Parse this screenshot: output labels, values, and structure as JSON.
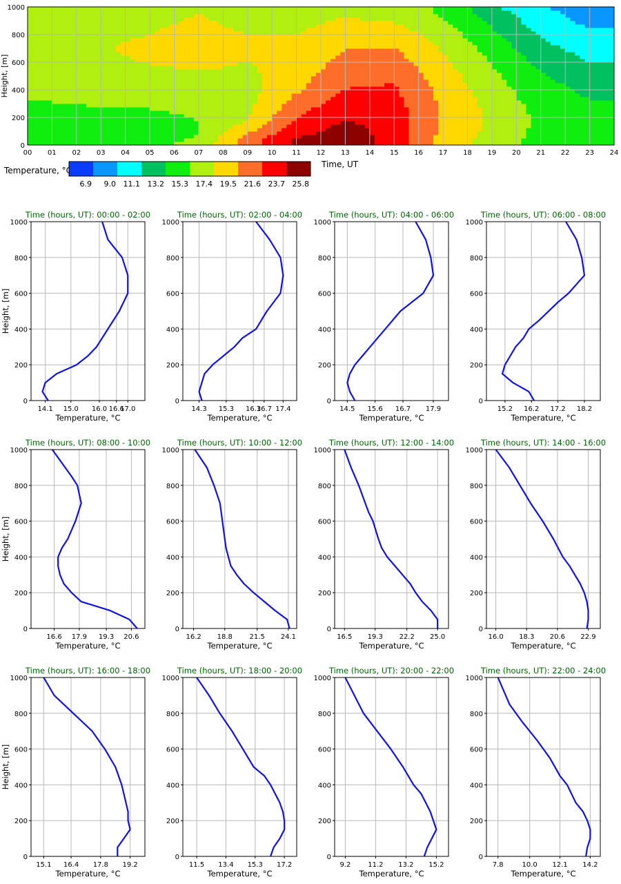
{
  "colors": {
    "grid": "#b8b8b8",
    "profile_line": "#1010e8",
    "subplot_title": "#006400",
    "axis_text": "#000000",
    "bins": [
      "#0a3cff",
      "#0a96ff",
      "#00ffff",
      "#00c060",
      "#10ee10",
      "#b0f010",
      "#ffd800",
      "#ff6e28",
      "#ff0000",
      "#8c0000"
    ]
  },
  "chart_data": [
    {
      "type": "heatmap",
      "title": "",
      "xlabel": "Time, UT",
      "ylabel": "Height, [m]",
      "xlim": [
        0,
        24
      ],
      "ylim": [
        0,
        1000
      ],
      "x_ticks": [
        "00",
        "01",
        "02",
        "03",
        "04",
        "05",
        "06",
        "07",
        "08",
        "09",
        "10",
        "11",
        "12",
        "13",
        "14",
        "15",
        "16",
        "17",
        "18",
        "19",
        "20",
        "21",
        "22",
        "23",
        "24"
      ],
      "y_ticks": [
        "0",
        "200",
        "400",
        "600",
        "800",
        "1000"
      ],
      "colorbar": {
        "label": "Temperature, °C",
        "boundaries": [
          "6.9",
          "9.0",
          "11.1",
          "13.2",
          "15.3",
          "17.4",
          "19.5",
          "21.6",
          "23.7",
          "25.8"
        ],
        "bounds_numeric": [
          5.8,
          6.9,
          9.0,
          11.1,
          13.2,
          15.3,
          17.4,
          19.5,
          21.6,
          23.7,
          25.8
        ]
      },
      "heights": [
        0,
        50,
        100,
        150,
        200,
        250,
        300,
        350,
        400,
        450,
        500,
        550,
        600,
        650,
        700,
        750,
        800,
        850,
        900,
        950,
        1000
      ],
      "profile_columns": [
        {
          "time": 1,
          "temps": [
            14.4,
            14.2,
            14.1,
            14.2,
            14.4,
            14.8,
            15.2,
            15.6,
            15.9,
            16.2,
            16.5,
            16.7,
            16.9,
            17.0,
            17.0,
            16.8,
            16.5,
            16.3,
            16.0,
            15.9,
            15.8
          ]
        },
        {
          "time": 3,
          "temps": [
            14.6,
            14.4,
            14.3,
            14.4,
            14.7,
            15.1,
            15.5,
            15.9,
            16.2,
            16.5,
            16.8,
            16.9,
            17.1,
            17.2,
            17.3,
            17.2,
            17.0,
            16.7,
            16.4,
            16.3,
            16.2
          ]
        },
        {
          "time": 5,
          "temps": [
            14.8,
            14.6,
            14.5,
            14.6,
            14.9,
            15.2,
            15.6,
            15.9,
            16.2,
            16.5,
            16.8,
            17.1,
            17.5,
            17.6,
            17.8,
            17.6,
            17.4,
            17.2,
            17.0,
            16.9,
            16.8
          ]
        },
        {
          "time": 7,
          "temps": [
            16.0,
            15.5,
            15.2,
            15.2,
            15.4,
            15.6,
            15.9,
            16.1,
            16.3,
            16.6,
            17.0,
            17.5,
            17.9,
            18.1,
            18.2,
            18.1,
            18.0,
            17.8,
            17.6,
            17.4,
            17.3
          ]
        },
        {
          "time": 9,
          "temps": [
            20.7,
            20.3,
            19.2,
            17.8,
            17.3,
            17.0,
            16.8,
            16.7,
            16.6,
            16.6,
            16.9,
            17.1,
            17.4,
            17.6,
            17.8,
            17.6,
            17.4,
            17.1,
            16.9,
            16.7,
            16.6
          ]
        },
        {
          "time": 11,
          "temps": [
            24.1,
            23.8,
            23.0,
            22.2,
            21.6,
            21.0,
            20.4,
            19.8,
            19.2,
            18.9,
            18.7,
            18.5,
            18.4,
            18.2,
            18.0,
            17.7,
            17.4,
            17.1,
            16.8,
            16.5,
            16.2
          ]
        },
        {
          "time": 13,
          "temps": [
            25.0,
            24.9,
            24.5,
            24.1,
            23.6,
            23.1,
            22.7,
            22.2,
            21.7,
            21.2,
            20.8,
            20.4,
            20.1,
            19.8,
            19.4,
            19.1,
            18.8,
            18.2,
            17.7,
            17.1,
            16.5
          ]
        },
        {
          "time": 15,
          "temps": [
            22.9,
            22.95,
            22.9,
            22.8,
            22.7,
            22.5,
            22.3,
            22.1,
            21.9,
            21.6,
            21.3,
            20.9,
            20.5,
            20.0,
            19.5,
            19.0,
            18.5,
            18.0,
            17.2,
            16.5,
            16.0
          ]
        },
        {
          "time": 17,
          "temps": [
            18.7,
            18.8,
            19.1,
            19.3,
            19.2,
            19.2,
            19.1,
            19.0,
            18.8,
            18.6,
            18.4,
            18.1,
            17.9,
            17.5,
            17.2,
            16.8,
            16.4,
            15.9,
            15.4,
            15.0,
            15.1
          ]
        },
        {
          "time": 19,
          "temps": [
            16.5,
            16.7,
            16.8,
            17.0,
            17.0,
            16.9,
            16.7,
            16.5,
            16.3,
            16.0,
            15.8,
            15.5,
            15.2,
            14.9,
            14.5,
            14.1,
            13.7,
            13.2,
            12.7,
            12.2,
            11.5
          ]
        },
        {
          "time": 21,
          "temps": [
            14.4,
            14.5,
            14.7,
            14.9,
            14.8,
            14.7,
            14.5,
            14.2,
            14.0,
            13.7,
            13.4,
            13.0,
            12.6,
            12.2,
            11.8,
            11.3,
            10.9,
            10.4,
            10.0,
            9.6,
            9.2
          ]
        },
        {
          "time": 23,
          "temps": [
            13.7,
            13.8,
            13.8,
            14.0,
            13.9,
            13.6,
            13.3,
            13.1,
            12.8,
            12.5,
            12.1,
            11.6,
            11.1,
            10.7,
            10.2,
            9.8,
            9.3,
            8.9,
            8.5,
            8.2,
            7.8
          ]
        }
      ]
    },
    {
      "type": "line",
      "title": "Time (hours, UT): 00:00 - 02:00",
      "xlabel": "Temperature, °C",
      "ylabel": "Height, [m]",
      "xlim": [
        13.6,
        17.6
      ],
      "ylim": [
        0,
        1000
      ],
      "x_ticks": [
        "14.1",
        "15.0",
        "16.0",
        "16.6",
        "17.0"
      ],
      "x_tick_values": [
        14.1,
        15.0,
        16.0,
        16.6,
        17.0
      ],
      "y_ticks": [
        "0",
        "200",
        "400",
        "600",
        "800",
        "1000"
      ],
      "x": [
        14.2,
        14.0,
        14.1,
        14.5,
        15.2,
        15.6,
        15.9,
        16.3,
        16.7,
        17.0,
        17.0,
        16.8,
        16.3,
        16.1
      ],
      "y": [
        0,
        50,
        100,
        150,
        200,
        250,
        300,
        400,
        500,
        600,
        700,
        800,
        900,
        1000
      ]
    },
    {
      "type": "line",
      "title": "Time (hours, UT): 02:00 - 04:00",
      "xlabel": "Temperature, °C",
      "ylabel": "",
      "xlim": [
        13.7,
        17.9
      ],
      "ylim": [
        0,
        1000
      ],
      "x_ticks": [
        "14.3",
        "15.3",
        "16.3",
        "16.7",
        "17.4"
      ],
      "x_tick_values": [
        14.3,
        15.3,
        16.3,
        16.7,
        17.4
      ],
      "y_ticks": [
        "0",
        "200",
        "400",
        "600",
        "800",
        "1000"
      ],
      "x": [
        14.4,
        14.3,
        14.4,
        14.5,
        14.8,
        15.2,
        15.6,
        15.9,
        16.4,
        16.8,
        17.3,
        17.4,
        17.3,
        16.9,
        16.4
      ],
      "y": [
        0,
        50,
        100,
        150,
        200,
        250,
        300,
        350,
        400,
        500,
        600,
        700,
        800,
        900,
        1000
      ]
    },
    {
      "type": "line",
      "title": "Time (hours, UT): 04:00 - 06:00",
      "xlabel": "Temperature, °C",
      "ylabel": "",
      "xlim": [
        14.0,
        18.5
      ],
      "ylim": [
        0,
        1000
      ],
      "x_ticks": [
        "14.5",
        "15.6",
        "16.7",
        "17.9"
      ],
      "x_tick_values": [
        14.5,
        15.6,
        16.7,
        17.9
      ],
      "y_ticks": [
        "0",
        "200",
        "400",
        "600",
        "800",
        "1000"
      ],
      "x": [
        14.8,
        14.6,
        14.5,
        14.6,
        14.8,
        15.1,
        15.4,
        15.7,
        16.0,
        16.6,
        17.5,
        17.9,
        17.8,
        17.6,
        17.2
      ],
      "y": [
        0,
        50,
        100,
        150,
        200,
        250,
        300,
        350,
        400,
        500,
        600,
        700,
        800,
        900,
        1000
      ]
    },
    {
      "type": "line",
      "title": "Time (hours, UT): 06:00 - 08:00",
      "xlabel": "Temperature, °C",
      "ylabel": "",
      "xlim": [
        14.5,
        18.8
      ],
      "ylim": [
        0,
        1000
      ],
      "x_ticks": [
        "15.2",
        "16.2",
        "17.2",
        "18.2"
      ],
      "x_tick_values": [
        15.2,
        16.2,
        17.2,
        18.2
      ],
      "y_ticks": [
        "0",
        "200",
        "400",
        "600",
        "800",
        "1000"
      ],
      "x": [
        16.3,
        16.1,
        15.5,
        15.1,
        15.2,
        15.4,
        15.6,
        15.9,
        16.1,
        16.5,
        17.2,
        17.6,
        18.2,
        18.1,
        17.9,
        17.5
      ],
      "y": [
        0,
        50,
        100,
        150,
        200,
        250,
        300,
        350,
        400,
        450,
        550,
        600,
        700,
        800,
        900,
        1000
      ]
    },
    {
      "type": "line",
      "title": "Time (hours, UT): 08:00 - 10:00",
      "xlabel": "Temperature, °C",
      "ylabel": "Height, [m]",
      "xlim": [
        15.4,
        21.3
      ],
      "ylim": [
        0,
        1000
      ],
      "x_ticks": [
        "16.6",
        "17.9",
        "19.3",
        "20.6"
      ],
      "x_tick_values": [
        16.6,
        17.9,
        19.3,
        20.6
      ],
      "y_ticks": [
        "0",
        "200",
        "400",
        "600",
        "800",
        "1000"
      ],
      "x": [
        20.9,
        20.5,
        19.5,
        18.0,
        17.5,
        17.1,
        16.9,
        16.8,
        16.8,
        17.0,
        17.3,
        17.7,
        18.0,
        17.8,
        17.5,
        16.5
      ],
      "y": [
        0,
        50,
        100,
        150,
        200,
        250,
        300,
        350,
        400,
        450,
        500,
        600,
        700,
        800,
        850,
        1000
      ]
    },
    {
      "type": "line",
      "title": "Time (hours, UT): 10:00 - 12:00",
      "xlabel": "Temperature, °C",
      "ylabel": "",
      "xlim": [
        15.3,
        24.8
      ],
      "ylim": [
        0,
        1000
      ],
      "x_ticks": [
        "16.2",
        "18.8",
        "21.5",
        "24.1"
      ],
      "x_tick_values": [
        16.2,
        18.8,
        21.5,
        24.1
      ],
      "y_ticks": [
        "0",
        "200",
        "400",
        "600",
        "800",
        "1000"
      ],
      "x": [
        24.2,
        24.0,
        23.0,
        22.1,
        21.2,
        20.4,
        19.8,
        19.3,
        19.1,
        18.9,
        18.8,
        18.6,
        18.4,
        17.9,
        17.3,
        16.3
      ],
      "y": [
        0,
        50,
        100,
        150,
        200,
        250,
        300,
        350,
        400,
        450,
        500,
        600,
        700,
        800,
        900,
        1000
      ]
    },
    {
      "type": "line",
      "title": "Time (hours, UT): 12:00 - 14:00",
      "xlabel": "Temperature, °C",
      "ylabel": "",
      "xlim": [
        15.6,
        26.0
      ],
      "ylim": [
        0,
        1000
      ],
      "x_ticks": [
        "16.5",
        "19.3",
        "22.2",
        "25.0"
      ],
      "x_tick_values": [
        16.5,
        19.3,
        22.2,
        25.0
      ],
      "y_ticks": [
        "0",
        "200",
        "400",
        "600",
        "800",
        "1000"
      ],
      "x": [
        25.0,
        25.0,
        24.4,
        23.6,
        23.0,
        22.5,
        21.8,
        21.1,
        20.4,
        19.9,
        19.6,
        19.1,
        18.7,
        18.4,
        17.8,
        17.1,
        16.5
      ],
      "y": [
        0,
        50,
        100,
        150,
        200,
        250,
        300,
        350,
        400,
        450,
        500,
        600,
        650,
        700,
        800,
        900,
        1000
      ]
    },
    {
      "type": "line",
      "title": "Time (hours, UT): 14:00 - 16:00",
      "xlabel": "Temperature, °C",
      "ylabel": "",
      "xlim": [
        15.3,
        23.8
      ],
      "ylim": [
        0,
        1000
      ],
      "x_ticks": [
        "16.0",
        "18.3",
        "20.6",
        "22.9"
      ],
      "x_tick_values": [
        16.0,
        18.3,
        20.6,
        22.9
      ],
      "y_ticks": [
        "0",
        "200",
        "400",
        "600",
        "800",
        "1000"
      ],
      "x": [
        22.8,
        22.9,
        22.9,
        22.8,
        22.6,
        22.3,
        21.9,
        21.5,
        21.0,
        20.3,
        19.5,
        18.6,
        18.2,
        17.0,
        16.0
      ],
      "y": [
        0,
        50,
        100,
        150,
        200,
        250,
        300,
        350,
        400,
        500,
        600,
        700,
        750,
        900,
        1000
      ]
    },
    {
      "type": "line",
      "title": "Time (hours, UT): 16:00 - 18:00",
      "xlabel": "Temperature, °C",
      "ylabel": "Height, [m]",
      "xlim": [
        14.5,
        19.9
      ],
      "ylim": [
        0,
        1000
      ],
      "x_ticks": [
        "15.1",
        "16.4",
        "17.8",
        "19.2"
      ],
      "x_tick_values": [
        15.1,
        16.4,
        17.8,
        19.2
      ],
      "y_ticks": [
        "0",
        "200",
        "400",
        "600",
        "800",
        "1000"
      ],
      "x": [
        18.6,
        18.6,
        18.9,
        19.2,
        19.1,
        19.1,
        19.0,
        18.8,
        18.5,
        18.0,
        17.4,
        16.5,
        15.6,
        15.1
      ],
      "y": [
        0,
        50,
        100,
        150,
        200,
        250,
        300,
        400,
        500,
        600,
        700,
        800,
        900,
        1000
      ]
    },
    {
      "type": "line",
      "title": "Time (hours, UT): 18:00 - 20:00",
      "xlabel": "Temperature, °C",
      "ylabel": "",
      "xlim": [
        10.6,
        18.0
      ],
      "ylim": [
        0,
        1000
      ],
      "x_ticks": [
        "11.5",
        "13.4",
        "15.3",
        "17.2"
      ],
      "x_tick_values": [
        11.5,
        13.4,
        15.3,
        17.2
      ],
      "y_ticks": [
        "0",
        "200",
        "400",
        "600",
        "800",
        "1000"
      ],
      "x": [
        16.3,
        16.5,
        16.9,
        17.2,
        17.2,
        17.1,
        16.9,
        16.6,
        16.3,
        15.9,
        15.2,
        14.5,
        13.8,
        13.0,
        12.3,
        11.5
      ],
      "y": [
        0,
        50,
        100,
        150,
        200,
        250,
        300,
        350,
        400,
        450,
        500,
        600,
        700,
        800,
        900,
        1000
      ]
    },
    {
      "type": "line",
      "title": "Time (hours, UT): 20:00 - 22:00",
      "xlabel": "Temperature, °C",
      "ylabel": "",
      "xlim": [
        8.5,
        16.0
      ],
      "ylim": [
        0,
        1000
      ],
      "x_ticks": [
        "9.2",
        "11.2",
        "13.2",
        "15.2"
      ],
      "x_tick_values": [
        9.2,
        11.2,
        13.2,
        15.2
      ],
      "y_ticks": [
        "0",
        "200",
        "400",
        "600",
        "800",
        "1000"
      ],
      "x": [
        14.4,
        14.6,
        14.9,
        15.2,
        15.0,
        14.8,
        14.5,
        14.2,
        13.7,
        13.0,
        12.2,
        11.3,
        10.4,
        9.2
      ],
      "y": [
        0,
        50,
        100,
        150,
        200,
        250,
        300,
        350,
        400,
        500,
        600,
        700,
        800,
        1000
      ]
    },
    {
      "type": "line",
      "title": "Time (hours, UT): 22:00 - 24:00",
      "xlabel": "Temperature, °C",
      "ylabel": "",
      "xlim": [
        7.0,
        14.9
      ],
      "ylim": [
        0,
        1000
      ],
      "x_ticks": [
        "7.8",
        "10.0",
        "12.1",
        "14.2"
      ],
      "x_tick_values": [
        7.8,
        10.0,
        12.1,
        14.2
      ],
      "y_ticks": [
        "0",
        "200",
        "400",
        "600",
        "800",
        "1000"
      ],
      "x": [
        13.9,
        14.0,
        14.2,
        14.2,
        14.0,
        13.7,
        13.2,
        12.6,
        12.1,
        11.4,
        10.5,
        9.5,
        8.6,
        7.8
      ],
      "y": [
        0,
        50,
        100,
        150,
        200,
        250,
        300,
        400,
        450,
        550,
        650,
        750,
        850,
        1000
      ]
    }
  ]
}
